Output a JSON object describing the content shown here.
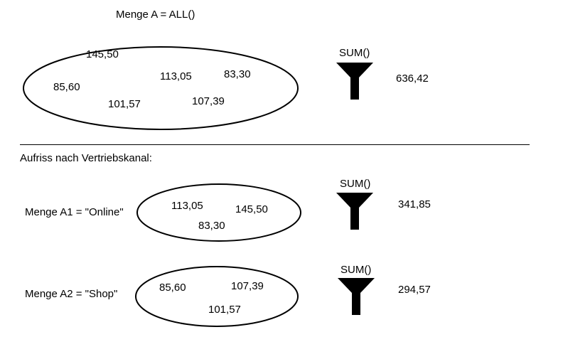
{
  "top": {
    "set_title": "Menge A = ALL()",
    "values": [
      "145,50",
      "85,60",
      "113,05",
      "83,30",
      "101,57",
      "107,39"
    ],
    "function_label": "SUM()",
    "result": "636,42"
  },
  "breakdown_label": "Aufriss nach Vertriebskanal:",
  "subsets": [
    {
      "label": "Menge A1 = \"Online\"",
      "values": [
        "113,05",
        "145,50",
        "83,30"
      ],
      "function_label": "SUM()",
      "result": "341,85"
    },
    {
      "label": "Menge A2 = \"Shop\"",
      "values": [
        "85,60",
        "107,39",
        "101,57"
      ],
      "function_label": "SUM()",
      "result": "294,57"
    }
  ],
  "icons": {
    "aggregate": "funnel-icon"
  }
}
